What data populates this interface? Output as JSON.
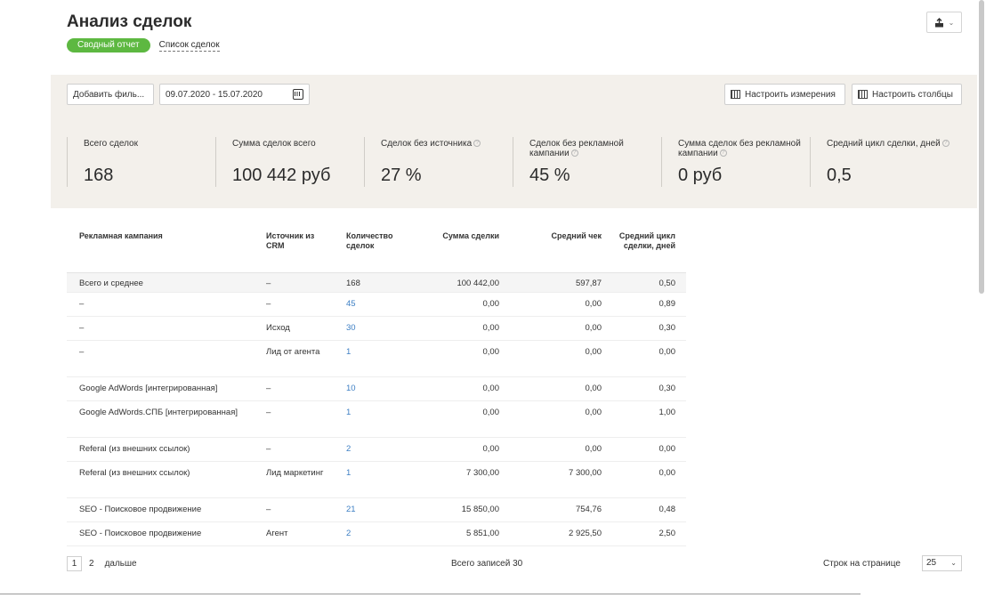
{
  "header": {
    "title": "Анализ сделок",
    "tab_summary": "Сводный отчет",
    "tab_list": "Список сделок",
    "export_icon": "export-icon"
  },
  "toolbar": {
    "add_filter": "Добавить филь...",
    "date_range": "09.07.2020 - 15.07.2020",
    "configure_dimensions": "Настроить измерения",
    "configure_columns": "Настроить столбцы"
  },
  "metrics": [
    {
      "label": "Всего сделок",
      "value": "168",
      "hint": false
    },
    {
      "label": "Сумма сделок всего",
      "value": "100 442 руб",
      "hint": false
    },
    {
      "label": "Сделок без источника",
      "value": "27 %",
      "hint": true
    },
    {
      "label": "Сделок без рекламной кампании",
      "value": "45 %",
      "hint": true
    },
    {
      "label": "Сумма сделок без рекламной кампании",
      "value": "0 руб",
      "hint": true
    },
    {
      "label": "Средний цикл сделки, дней",
      "value": "0,5",
      "hint": true
    }
  ],
  "table": {
    "headers": {
      "campaign": "Рекламная кампания",
      "source": "Источник из CRM",
      "count": "Количество сделок",
      "sum": "Сумма сделки",
      "avg": "Средний чек",
      "cycle": "Средний цикл сделки, дней"
    },
    "total": {
      "campaign": "Всего и среднее",
      "source": "–",
      "count": "168",
      "sum": "100 442,00",
      "avg": "597,87",
      "cycle": "0,50"
    },
    "rows": [
      {
        "campaign": "–",
        "source": "–",
        "count": "45",
        "sum": "0,00",
        "avg": "0,00",
        "cycle": "0,89"
      },
      {
        "campaign": "–",
        "source": "Исход",
        "count": "30",
        "sum": "0,00",
        "avg": "0,00",
        "cycle": "0,30"
      },
      {
        "campaign": "–",
        "source": "Лид от агента",
        "count": "1",
        "sum": "0,00",
        "avg": "0,00",
        "cycle": "0,00"
      },
      {
        "campaign": "Google AdWords [интегрированная]",
        "source": "–",
        "count": "10",
        "sum": "0,00",
        "avg": "0,00",
        "cycle": "0,30"
      },
      {
        "campaign": "Google AdWords.СПБ [интегрированная]",
        "source": "–",
        "count": "1",
        "sum": "0,00",
        "avg": "0,00",
        "cycle": "1,00"
      },
      {
        "campaign": "Referal (из внешних ссылок)",
        "source": "–",
        "count": "2",
        "sum": "0,00",
        "avg": "0,00",
        "cycle": "0,00"
      },
      {
        "campaign": "Referal (из внешних ссылок)",
        "source": "Лид маркетинг",
        "count": "1",
        "sum": "7 300,00",
        "avg": "7 300,00",
        "cycle": "0,00"
      },
      {
        "campaign": "SEO - Поисковое продвижение",
        "source": "–",
        "count": "21",
        "sum": "15 850,00",
        "avg": "754,76",
        "cycle": "0,48"
      },
      {
        "campaign": "SEO - Поисковое продвижение",
        "source": "Агент",
        "count": "2",
        "sum": "5 851,00",
        "avg": "2 925,50",
        "cycle": "2,50"
      }
    ]
  },
  "pagination": {
    "current": "1",
    "next_page": "2",
    "next_label": "дальше",
    "total_records": "Всего записей 30",
    "rows_per_page_label": "Строк на странице",
    "rows_per_page": "25"
  }
}
